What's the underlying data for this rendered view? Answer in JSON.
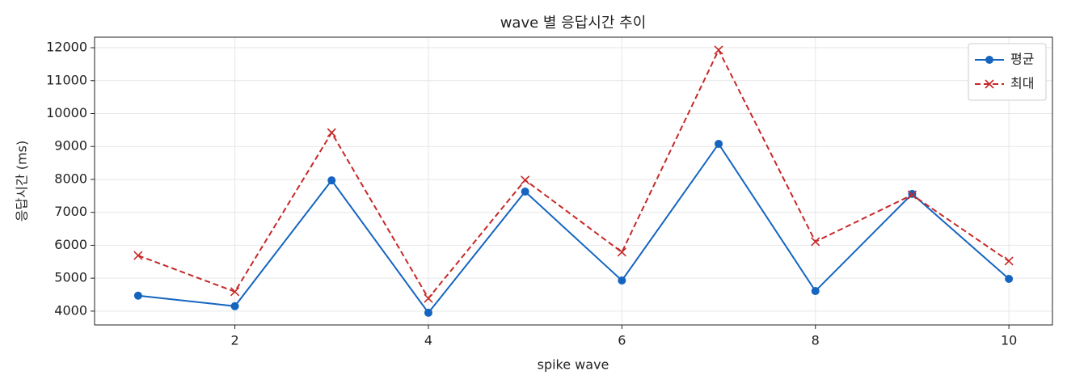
{
  "chart_data": {
    "type": "line",
    "title": "wave 별 응답시간 추이",
    "x_label": "spike wave",
    "y_label": "응답시간 (ms)",
    "x": [
      1,
      2,
      3,
      4,
      5,
      6,
      7,
      8,
      9,
      10
    ],
    "series": [
      {
        "name": "평균",
        "color": "#1565c0",
        "marker": "o",
        "linestyle": "solid",
        "values": [
          4470,
          4150,
          7970,
          3950,
          7630,
          4930,
          9080,
          4610,
          7560,
          4980
        ]
      },
      {
        "name": "최대",
        "color": "#c62828",
        "marker": "x",
        "linestyle": "dashed",
        "values": [
          5690,
          4590,
          9420,
          4390,
          7980,
          5790,
          11930,
          6110,
          7530,
          5520
        ]
      }
    ],
    "xlim": [
      0.55,
      10.45
    ],
    "xticks": [
      2,
      4,
      6,
      8,
      10
    ],
    "ylim": [
      3580,
      12320
    ],
    "yticks": [
      4000,
      5000,
      6000,
      7000,
      8000,
      9000,
      10000,
      11000,
      12000
    ],
    "grid": true,
    "legend": "upper right"
  }
}
